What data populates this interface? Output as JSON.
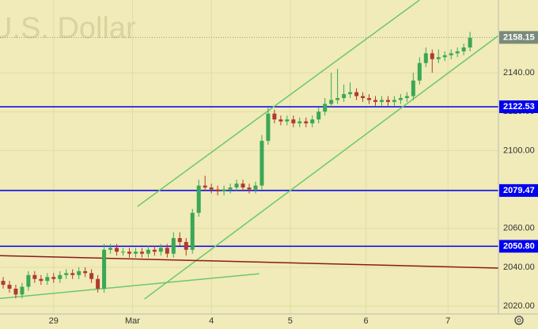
{
  "chart_data": {
    "type": "candlestick",
    "watermark": "U.S. Dollar",
    "xlim": [
      -0.5,
      78.5
    ],
    "xticks": [
      {
        "value": 8,
        "label": "29"
      },
      {
        "value": 20.5,
        "label": "Mar"
      },
      {
        "value": 33,
        "label": "4"
      },
      {
        "value": 45.5,
        "label": "5"
      },
      {
        "value": 57.5,
        "label": "6"
      },
      {
        "value": 70.5,
        "label": "7"
      }
    ],
    "ylim": [
      2016,
      2177.4
    ],
    "yticks": [
      {
        "value": 2020,
        "label": "2020.00"
      },
      {
        "value": 2040,
        "label": "2040.00"
      },
      {
        "value": 2060,
        "label": "2060.00"
      },
      {
        "value": 2080,
        "label": "2080.00"
      },
      {
        "value": 2100,
        "label": "2100.00"
      },
      {
        "value": 2120,
        "label": "2120.00"
      },
      {
        "value": 2140,
        "label": "2140.00"
      }
    ],
    "grid": true,
    "up_color": "#3aa757",
    "down_color": "#b03a2e",
    "open": [
      2033,
      2031,
      2029,
      2026,
      2030,
      2036,
      2034,
      2033,
      2035,
      2034,
      2036,
      2037,
      2036,
      2038,
      2037,
      2034,
      2029,
      2049,
      2050,
      2048,
      2048,
      2047,
      2048,
      2047,
      2049,
      2048,
      2050,
      2047,
      2055,
      2053,
      2049,
      2068,
      2082,
      2081,
      2080,
      2079,
      2080,
      2081,
      2083,
      2081,
      2080,
      2082,
      2105,
      2119,
      2116,
      2115,
      2116,
      2114,
      2115,
      2114,
      2116,
      2120,
      2124,
      2126,
      2127,
      2129,
      2130,
      2128,
      2127,
      2126,
      2125,
      2126,
      2125,
      2126,
      2127,
      2128,
      2136,
      2145,
      2150,
      2147,
      2148,
      2149,
      2150,
      2151,
      2153
    ],
    "high": [
      2035,
      2033,
      2031,
      2032,
      2038,
      2038,
      2036,
      2037,
      2037,
      2038,
      2039,
      2039,
      2040,
      2040,
      2039,
      2036,
      2052,
      2052,
      2052,
      2050,
      2050,
      2050,
      2050,
      2051,
      2051,
      2052,
      2052,
      2058,
      2058,
      2055,
      2070,
      2085,
      2087,
      2083,
      2082,
      2082,
      2083,
      2085,
      2085,
      2083,
      2084,
      2108,
      2122,
      2121,
      2118,
      2118,
      2118,
      2117,
      2117,
      2118,
      2122,
      2127,
      2140,
      2142,
      2134,
      2135,
      2132,
      2130,
      2129,
      2128,
      2128,
      2128,
      2128,
      2129,
      2130,
      2140,
      2148,
      2153,
      2152,
      2152,
      2151,
      2152,
      2153,
      2155,
      2161
    ],
    "low": [
      2029,
      2027,
      2024,
      2024,
      2028,
      2032,
      2031,
      2031,
      2032,
      2032,
      2034,
      2034,
      2034,
      2035,
      2032,
      2027,
      2027,
      2047,
      2046,
      2046,
      2045,
      2045,
      2045,
      2045,
      2046,
      2046,
      2045,
      2045,
      2051,
      2046,
      2047,
      2066,
      2079,
      2078,
      2077,
      2077,
      2078,
      2079,
      2079,
      2078,
      2078,
      2080,
      2103,
      2114,
      2113,
      2113,
      2112,
      2112,
      2112,
      2112,
      2114,
      2118,
      2122,
      2124,
      2125,
      2127,
      2126,
      2125,
      2124,
      2123,
      2123,
      2123,
      2123,
      2124,
      2125,
      2126,
      2134,
      2143,
      2140,
      2145,
      2146,
      2147,
      2148,
      2149,
      2151
    ],
    "close": [
      2031,
      2029,
      2026,
      2030,
      2036,
      2034,
      2033,
      2035,
      2034,
      2036,
      2037,
      2036,
      2038,
      2037,
      2034,
      2029,
      2049,
      2050,
      2048,
      2048,
      2047,
      2048,
      2047,
      2049,
      2048,
      2050,
      2047,
      2055,
      2053,
      2049,
      2068,
      2082,
      2081,
      2080,
      2079,
      2080,
      2081,
      2083,
      2081,
      2080,
      2082,
      2105,
      2119,
      2116,
      2115,
      2116,
      2114,
      2115,
      2114,
      2116,
      2120,
      2124,
      2126,
      2127,
      2129,
      2130,
      2128,
      2127,
      2126,
      2125,
      2126,
      2125,
      2126,
      2127,
      2128,
      2136,
      2145,
      2150,
      2147,
      2148,
      2149,
      2150,
      2151,
      2153,
      2158
    ],
    "hlines": [
      {
        "value": 2122.53,
        "color": "#0000ee"
      },
      {
        "value": 2079.47,
        "color": "#0000ee"
      },
      {
        "value": 2050.8,
        "label": "2050.80",
        "color": "#0000ee"
      }
    ],
    "trendlines": [
      {
        "x": [
          21.3,
          66
        ],
        "y": [
          2071.3,
          2177.4
        ],
        "color": "#6cc86c"
      },
      {
        "x": [
          22.4,
          78.5
        ],
        "y": [
          2023.7,
          2159.1
        ],
        "color": "#6cc86c"
      },
      {
        "x": [
          -0.5,
          40.6
        ],
        "y": [
          2024,
          2036.7
        ],
        "color": "#6cc86c"
      },
      {
        "x": [
          -0.5,
          78.5
        ],
        "y": [
          2046,
          2039.6
        ],
        "color": "#8b1a1a"
      }
    ],
    "last_price": 2158.15
  }
}
